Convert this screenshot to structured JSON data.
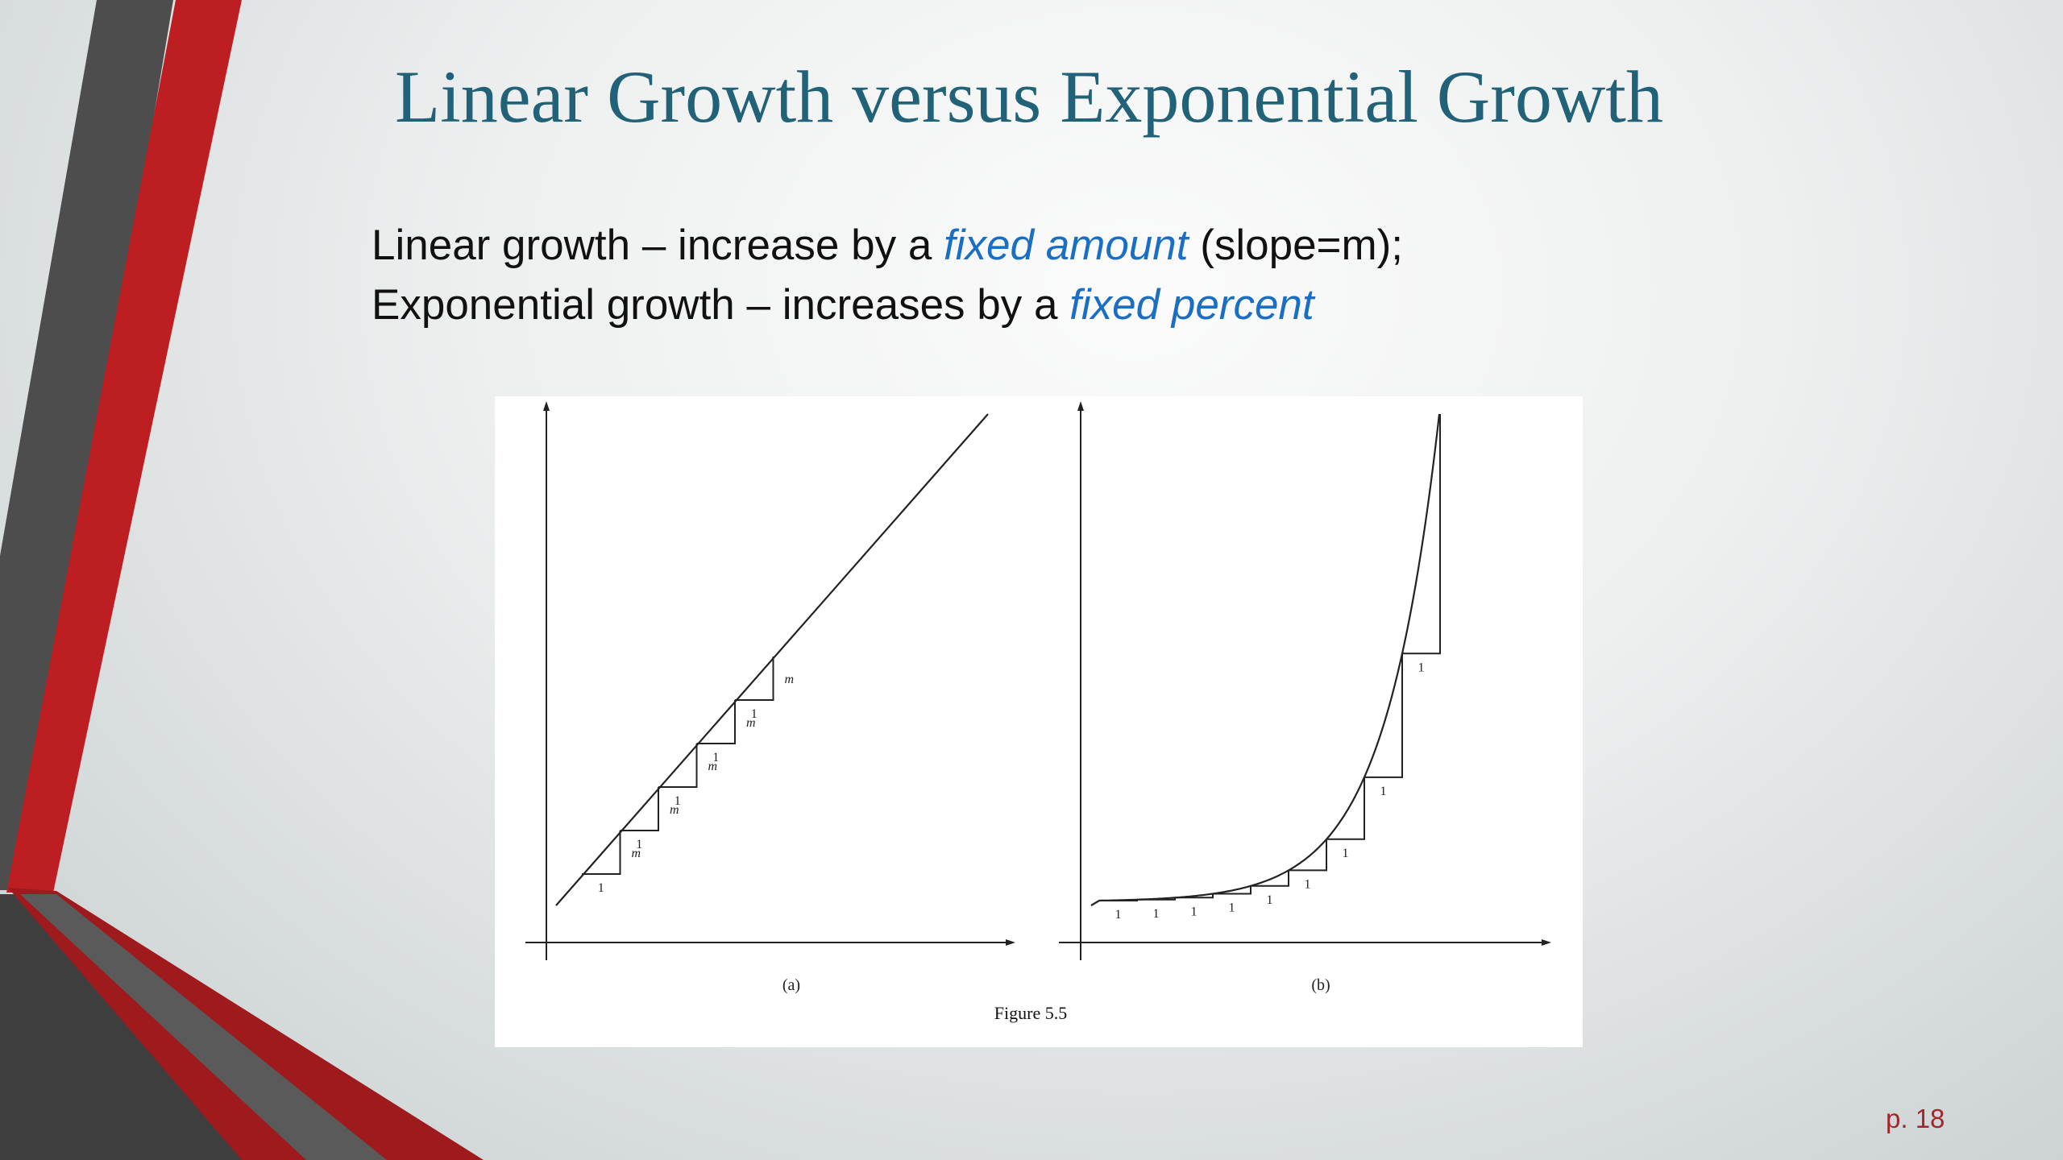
{
  "slide": {
    "title": "Linear Growth versus Exponential Growth",
    "line1": {
      "prefix": "Linear growth – increase by a ",
      "emphasis": "fixed amount",
      "suffix": " (slope=m);"
    },
    "line2": {
      "prefix": "Exponential growth – increases by a ",
      "emphasis": "fixed percent"
    },
    "page_number": "p. 18"
  },
  "figure": {
    "caption": "Figure 5.5",
    "panel_a": {
      "label": "(a)",
      "run_label": "1",
      "rise_label": "m"
    },
    "panel_b": {
      "label": "(b)",
      "run_label": "1"
    }
  },
  "colors": {
    "title": "#216278",
    "emphasis": "#1a6fc4",
    "accent_red": "#be1e22",
    "accent_dark": "#4a4a4a",
    "page_number": "#a3262a"
  }
}
